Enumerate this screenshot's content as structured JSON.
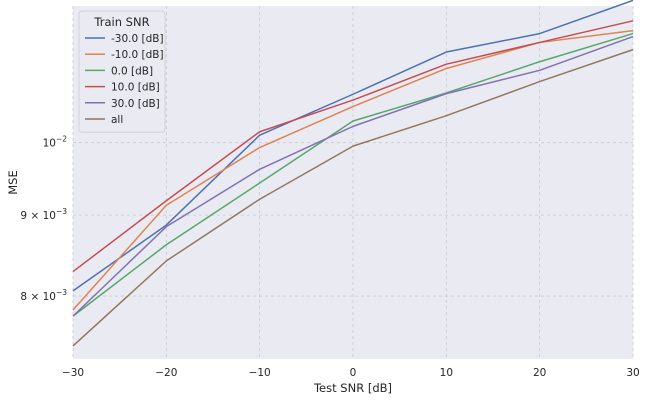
{
  "chart_data": {
    "type": "line",
    "title": "",
    "xlabel": "Test SNR [dB]",
    "ylabel": "MSE",
    "xlim": [
      -30,
      30
    ],
    "ylim": [
      0.0073,
      0.0122
    ],
    "yscale": "log",
    "grid": true,
    "x": [
      -30,
      -20,
      -10,
      0,
      10,
      20,
      30
    ],
    "xticks": [
      "−30",
      "−20",
      "−10",
      "0",
      "10",
      "20",
      "30"
    ],
    "yticks": [
      {
        "value": 0.008,
        "mant": "8",
        "exp": "−3"
      },
      {
        "value": 0.009,
        "mant": "9",
        "exp": "−3"
      },
      {
        "value": 0.01,
        "mant": "",
        "exp": "−2"
      }
    ],
    "legend": {
      "title": "Train SNR",
      "position": "top-left"
    },
    "series": [
      {
        "name": "-30.0 [dB]",
        "color": "#4c72b0",
        "values": [
          0.00806,
          0.00887,
          0.01011,
          0.01073,
          0.01141,
          0.01172,
          0.0123
        ]
      },
      {
        "name": "-10.0 [dB]",
        "color": "#dd8452",
        "values": [
          0.00784,
          0.00913,
          0.00993,
          0.01054,
          0.01114,
          0.01157,
          0.01177
        ]
      },
      {
        "name": "0.0 [dB]",
        "color": "#55a868",
        "values": [
          0.00777,
          0.00862,
          0.00943,
          0.01032,
          0.01075,
          0.01125,
          0.01172
        ]
      },
      {
        "name": "10.0 [dB]",
        "color": "#c44e52",
        "values": [
          0.00829,
          0.00919,
          0.01016,
          0.01064,
          0.01121,
          0.01157,
          0.01194
        ]
      },
      {
        "name": "30.0 [dB]",
        "color": "#8172b3",
        "values": [
          0.00777,
          0.00885,
          0.00962,
          0.01024,
          0.01074,
          0.01111,
          0.01167
        ]
      },
      {
        "name": "all",
        "color": "#937860",
        "values": [
          0.00744,
          0.00842,
          0.00921,
          0.00995,
          0.0104,
          0.01093,
          0.01145
        ]
      }
    ]
  }
}
